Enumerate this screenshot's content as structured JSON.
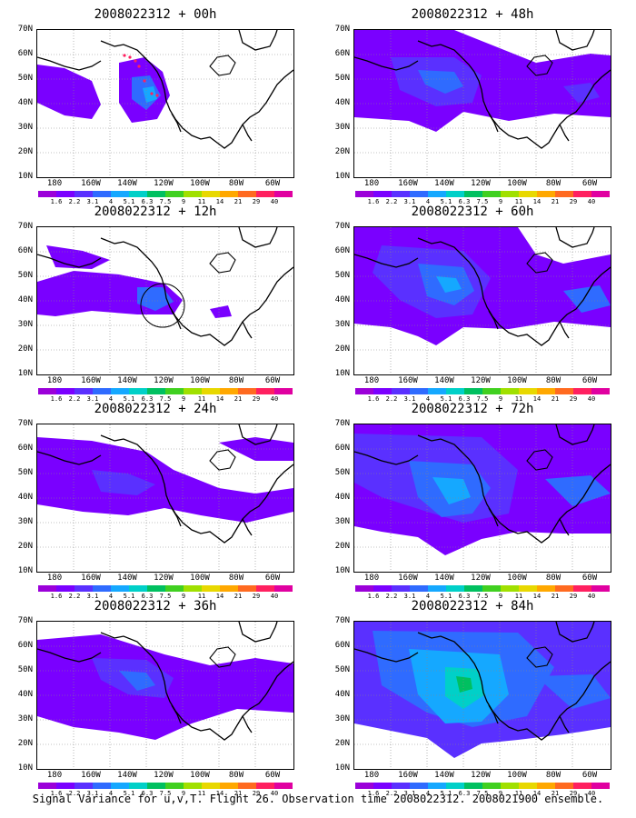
{
  "panels": [
    {
      "title": "2008022312 + 00h"
    },
    {
      "title": "2008022312 + 12h"
    },
    {
      "title": "2008022312 + 24h"
    },
    {
      "title": "2008022312 + 36h"
    },
    {
      "title": "2008022312 + 48h"
    },
    {
      "title": "2008022312 + 60h"
    },
    {
      "title": "2008022312 + 72h"
    },
    {
      "title": "2008022312 + 84h"
    }
  ],
  "lat_labels": [
    "70N",
    "60N",
    "50N",
    "40N",
    "30N",
    "20N",
    "10N"
  ],
  "lon_labels": [
    "180",
    "160W",
    "140W",
    "120W",
    "100W",
    "80W",
    "60W"
  ],
  "colorbar": {
    "labels": [
      "1.6",
      "2.2",
      "3.1",
      "4",
      "5.1",
      "6.3",
      "7.5",
      "9",
      "11",
      "14",
      "21",
      "29",
      "40"
    ],
    "colors": [
      "#9b00d9",
      "#7a00ff",
      "#5a30ff",
      "#2f6bff",
      "#15a8ff",
      "#00d0c8",
      "#00c060",
      "#40d020",
      "#a0e000",
      "#e8d800",
      "#ffa800",
      "#ff6a20",
      "#ff2060",
      "#e000a0"
    ]
  },
  "caption": "Signal Variance for u,v,T. Flight 26. Observation time 2008022312. 2008021900 ensemble."
}
